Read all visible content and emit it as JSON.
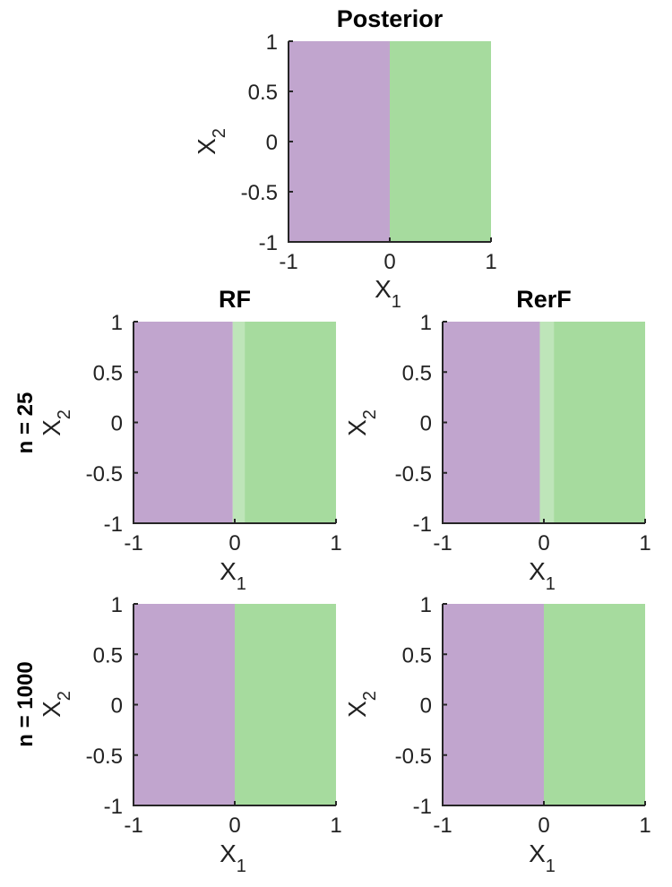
{
  "colors": {
    "class_a": "#c1a5ce",
    "class_b": "#a6db9e"
  },
  "row_labels": [
    "n = 25",
    "n = 1000"
  ],
  "chart_data": [
    {
      "type": "heatmap",
      "title": "Posterior",
      "xlabel": "X",
      "xlabel_sub": "1",
      "ylabel": "X",
      "ylabel_sub": "2",
      "xlim": [
        -1,
        1
      ],
      "ylim": [
        -1,
        1
      ],
      "xticks": [
        "-1",
        "0",
        "1"
      ],
      "yticks": [
        "1",
        "0.5",
        "0",
        "-0.5",
        "-1"
      ],
      "boundary_x": 0,
      "uncertain_band": null
    },
    {
      "type": "heatmap",
      "title": "RF",
      "xlabel": "X",
      "xlabel_sub": "1",
      "ylabel": "X",
      "ylabel_sub": "2",
      "xlim": [
        -1,
        1
      ],
      "ylim": [
        -1,
        1
      ],
      "xticks": [
        "-1",
        "0",
        "1"
      ],
      "yticks": [
        "1",
        "0.5",
        "0",
        "-0.5",
        "-1"
      ],
      "boundary_x": -0.02,
      "uncertain_band": [
        -0.02,
        0.1
      ]
    },
    {
      "type": "heatmap",
      "title": "RerF",
      "xlabel": "X",
      "xlabel_sub": "1",
      "ylabel": "X",
      "ylabel_sub": "2",
      "xlim": [
        -1,
        1
      ],
      "ylim": [
        -1,
        1
      ],
      "xticks": [
        "-1",
        "0",
        "1"
      ],
      "yticks": [
        "1",
        "0.5",
        "0",
        "-0.5",
        "-1"
      ],
      "boundary_x": -0.04,
      "uncertain_band": [
        -0.04,
        0.1
      ]
    },
    {
      "type": "heatmap",
      "title": "",
      "xlabel": "X",
      "xlabel_sub": "1",
      "ylabel": "X",
      "ylabel_sub": "2",
      "xlim": [
        -1,
        1
      ],
      "ylim": [
        -1,
        1
      ],
      "xticks": [
        "-1",
        "0",
        "1"
      ],
      "yticks": [
        "1",
        "0.5",
        "0",
        "-0.5",
        "-1"
      ],
      "boundary_x": 0,
      "uncertain_band": null
    },
    {
      "type": "heatmap",
      "title": "",
      "xlabel": "X",
      "xlabel_sub": "1",
      "ylabel": "X",
      "ylabel_sub": "2",
      "xlim": [
        -1,
        1
      ],
      "ylim": [
        -1,
        1
      ],
      "xticks": [
        "-1",
        "0",
        "1"
      ],
      "yticks": [
        "1",
        "0.5",
        "0",
        "-0.5",
        "-1"
      ],
      "boundary_x": 0,
      "uncertain_band": null
    }
  ]
}
